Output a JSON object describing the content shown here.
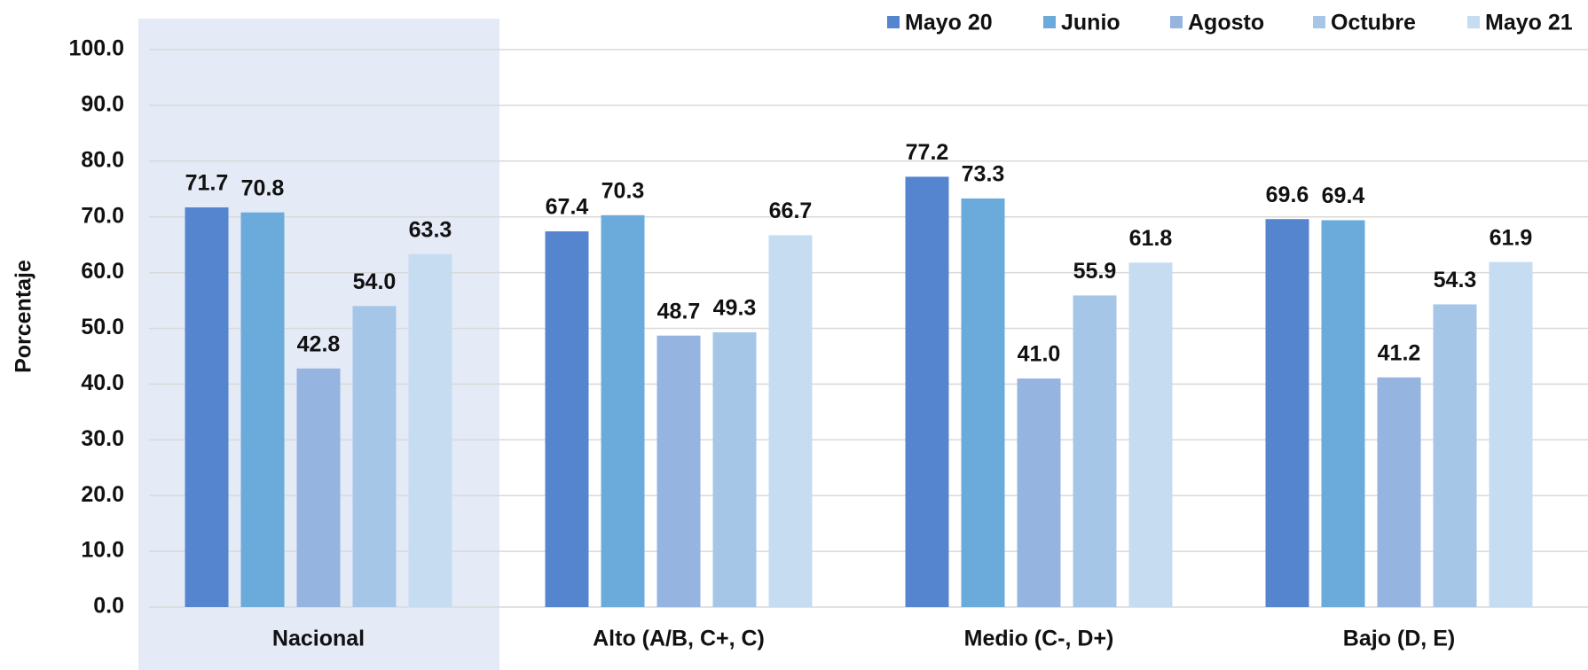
{
  "chart_data": {
    "type": "bar",
    "y_label": "Porcentaje",
    "categories": [
      "Nacional",
      "Alto (A/B, C+, C)",
      "Medio  (C-, D+)",
      "Bajo (D, E)"
    ],
    "series": [
      {
        "name": "Mayo 20",
        "color": "#5585cf",
        "values": [
          71.7,
          67.4,
          77.2,
          69.6
        ],
        "value_labels": [
          "71.7",
          "67.4",
          "77.2",
          "69.6"
        ]
      },
      {
        "name": "Junio",
        "color": "#6aabdb",
        "values": [
          70.8,
          70.3,
          73.3,
          69.4
        ],
        "value_labels": [
          "70.8",
          "70.3",
          "73.3",
          "69.4"
        ]
      },
      {
        "name": "Agosto",
        "color": "#96b4e0",
        "values": [
          42.8,
          48.7,
          41.0,
          41.2
        ],
        "value_labels": [
          "42.8",
          "48.7",
          "41.0",
          "41.2"
        ]
      },
      {
        "name": "Octubre",
        "color": "#a6c6e8",
        "values": [
          54.0,
          49.3,
          55.9,
          54.3
        ],
        "value_labels": [
          "54.0",
          "49.3",
          "55.9",
          "54.3"
        ]
      },
      {
        "name": "Mayo 21",
        "color": "#c5dcf1",
        "values": [
          63.3,
          66.7,
          61.8,
          61.9
        ],
        "value_labels": [
          "63.3",
          "66.7",
          "61.8",
          "61.9"
        ]
      }
    ],
    "ylim": [
      0,
      100
    ],
    "yticks": [
      {
        "value": 0,
        "label": "0.0"
      },
      {
        "value": 10,
        "label": "10.0"
      },
      {
        "value": 20,
        "label": "20.0"
      },
      {
        "value": 30,
        "label": "30.0"
      },
      {
        "value": 40,
        "label": "40.0"
      },
      {
        "value": 50,
        "label": "50.0"
      },
      {
        "value": 60,
        "label": "60.0"
      },
      {
        "value": 70,
        "label": "70.0"
      },
      {
        "value": 80,
        "label": "80.0"
      },
      {
        "value": 90,
        "label": "90.0"
      },
      {
        "value": 100,
        "label": "100.0"
      }
    ],
    "grid": true,
    "legend": "top"
  }
}
